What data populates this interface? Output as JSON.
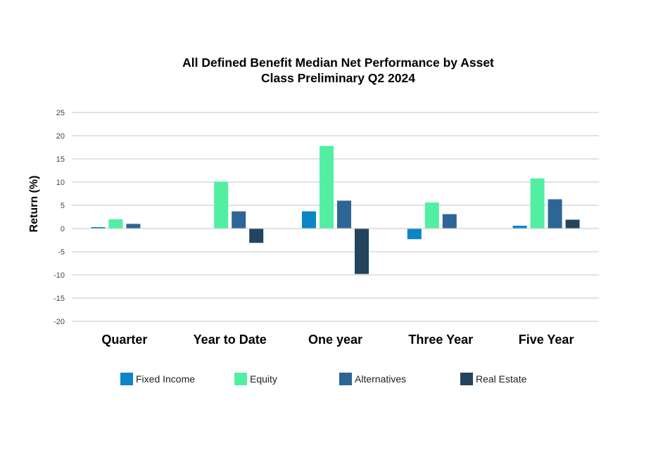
{
  "chart_data": {
    "type": "bar",
    "title_lines": [
      "All Defined Benefit Median Net Performance by Asset",
      "Class Preliminary Q2 2024"
    ],
    "ylabel": "Return (%)",
    "xlabel": "",
    "ylim": [
      -20,
      25
    ],
    "yticks": [
      25,
      20,
      15,
      10,
      5,
      0,
      -5,
      -10,
      -15,
      -20
    ],
    "grid": true,
    "legend_position": "bottom",
    "categories": [
      "Quarter",
      "Year to Date",
      "One year",
      "Three Year",
      "Five Year"
    ],
    "series": [
      {
        "name": "Fixed Income",
        "color": "#0B86C8",
        "values": [
          0.3,
          0.0,
          3.7,
          -2.3,
          0.6
        ]
      },
      {
        "name": "Equity",
        "color": "#52EFA3",
        "values": [
          2.0,
          10.1,
          17.8,
          5.6,
          10.8
        ]
      },
      {
        "name": "Alternatives",
        "color": "#2E6597",
        "values": [
          1.0,
          3.7,
          6.0,
          3.1,
          6.3
        ]
      },
      {
        "name": "Real Estate",
        "color": "#22445F",
        "values": [
          0.0,
          -3.1,
          -9.8,
          0.0,
          1.9
        ]
      }
    ]
  }
}
